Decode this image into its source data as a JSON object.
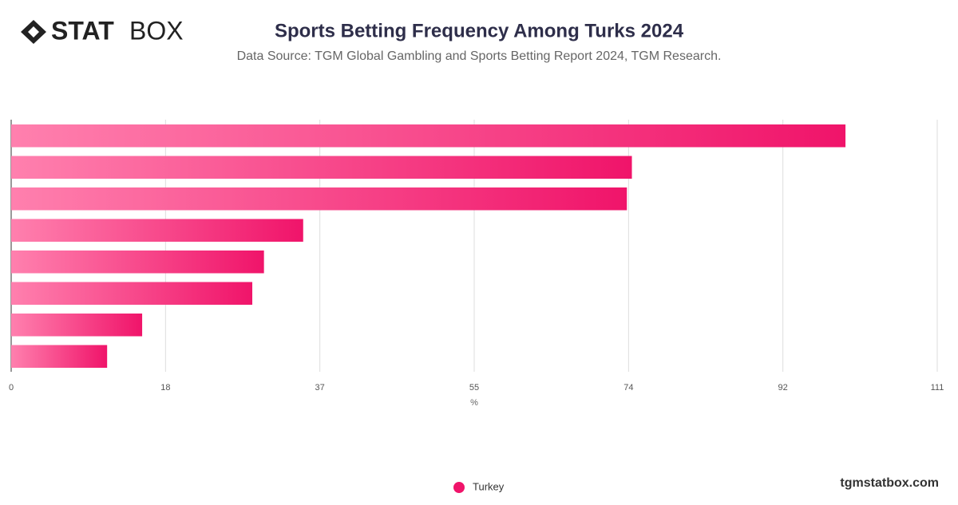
{
  "logo": {
    "bold": "STAT",
    "light": "BOX"
  },
  "footer": "tgmstatbox.com",
  "chart_data": {
    "type": "bar",
    "orientation": "horizontal",
    "title": "Sports Betting Frequency Among Turks 2024",
    "subtitle": "Data Source: TGM Global Gambling and Sports Betting Report 2024, TGM Research.",
    "x_label": "%",
    "categories": [
      null,
      null,
      null,
      null,
      null,
      null,
      null,
      null
    ],
    "series": [
      {
        "name": "Turkey",
        "color": "#f0146a",
        "values": [
          100,
          74.4,
          73.8,
          35,
          30.3,
          28.9,
          15.7,
          11.5
        ]
      }
    ],
    "xlim": [
      0,
      111
    ],
    "xticks": [
      0,
      {
        "value": 18.5,
        "label": "18"
      },
      37,
      {
        "value": 55.5,
        "label": "55"
      },
      74,
      {
        "value": 92.5,
        "label": "92"
      },
      111
    ],
    "grid": true
  }
}
